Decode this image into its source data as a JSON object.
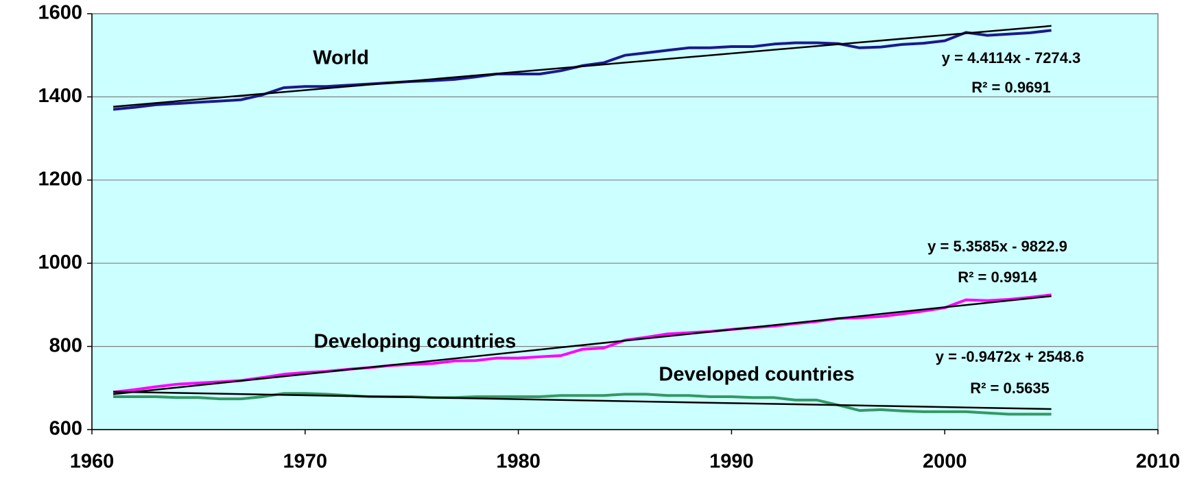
{
  "chart_data": {
    "type": "line",
    "x": [
      1961,
      1962,
      1963,
      1964,
      1965,
      1966,
      1967,
      1968,
      1969,
      1970,
      1971,
      1972,
      1973,
      1974,
      1975,
      1976,
      1977,
      1978,
      1979,
      1980,
      1981,
      1982,
      1983,
      1984,
      1985,
      1986,
      1987,
      1988,
      1989,
      1990,
      1991,
      1992,
      1993,
      1994,
      1995,
      1996,
      1997,
      1998,
      1999,
      2000,
      2001,
      2002,
      2003,
      2004,
      2005
    ],
    "series": [
      {
        "name": "World",
        "color": "#1a1a8c",
        "values": [
          1370,
          1375,
          1381,
          1384,
          1387,
          1390,
          1393,
          1405,
          1422,
          1425,
          1425,
          1428,
          1431,
          1434,
          1437,
          1439,
          1442,
          1448,
          1455,
          1455,
          1455,
          1463,
          1475,
          1482,
          1500,
          1506,
          1512,
          1518,
          1518,
          1521,
          1521,
          1527,
          1530,
          1530,
          1528,
          1518,
          1520,
          1526,
          1529,
          1535,
          1555,
          1548,
          1551,
          1554,
          1560
        ]
      },
      {
        "name": "Developing countries",
        "color": "#ff00ff",
        "values": [
          690,
          696,
          703,
          709,
          712,
          715,
          718,
          725,
          733,
          737,
          740,
          745,
          749,
          754,
          757,
          759,
          765,
          766,
          772,
          772,
          775,
          778,
          793,
          796,
          815,
          822,
          830,
          833,
          836,
          841,
          845,
          849,
          855,
          860,
          867,
          869,
          872,
          878,
          885,
          893,
          912,
          910,
          913,
          918,
          924
        ]
      },
      {
        "name": "Developed countries",
        "color": "#339966",
        "values": [
          679,
          679,
          679,
          677,
          677,
          674,
          674,
          679,
          687,
          687,
          685,
          682,
          679,
          679,
          679,
          677,
          677,
          679,
          679,
          679,
          679,
          682,
          682,
          682,
          685,
          685,
          682,
          682,
          679,
          679,
          677,
          677,
          671,
          671,
          659,
          646,
          648,
          645,
          643,
          643,
          643,
          640,
          637,
          637,
          637
        ]
      }
    ],
    "trendlines": [
      {
        "color": "#000000",
        "x": [
          1961,
          2005
        ],
        "values": [
          1376.4,
          1570.6
        ],
        "equation": "y = 4.4114x - 7274.3",
        "r2": "R² = 0.9691"
      },
      {
        "color": "#000000",
        "x": [
          1961,
          2005
        ],
        "values": [
          685.1,
          920.9
        ],
        "equation": "y = 5.3585x - 9822.9",
        "r2": "R² = 0.9914"
      },
      {
        "color": "#000000",
        "x": [
          1961,
          2005
        ],
        "values": [
          691.1,
          649.5
        ],
        "equation": "y = -0.9472x + 2548.6",
        "r2": "R² = 0.5635"
      }
    ],
    "xlim": [
      1960,
      2010
    ],
    "xticks": [
      1960,
      1970,
      1980,
      1990,
      2000,
      2010
    ],
    "ylim": [
      600,
      1600
    ],
    "yticks": [
      600,
      800,
      1000,
      1200,
      1400,
      1600
    ],
    "grid": true,
    "background": "#ccffff"
  }
}
